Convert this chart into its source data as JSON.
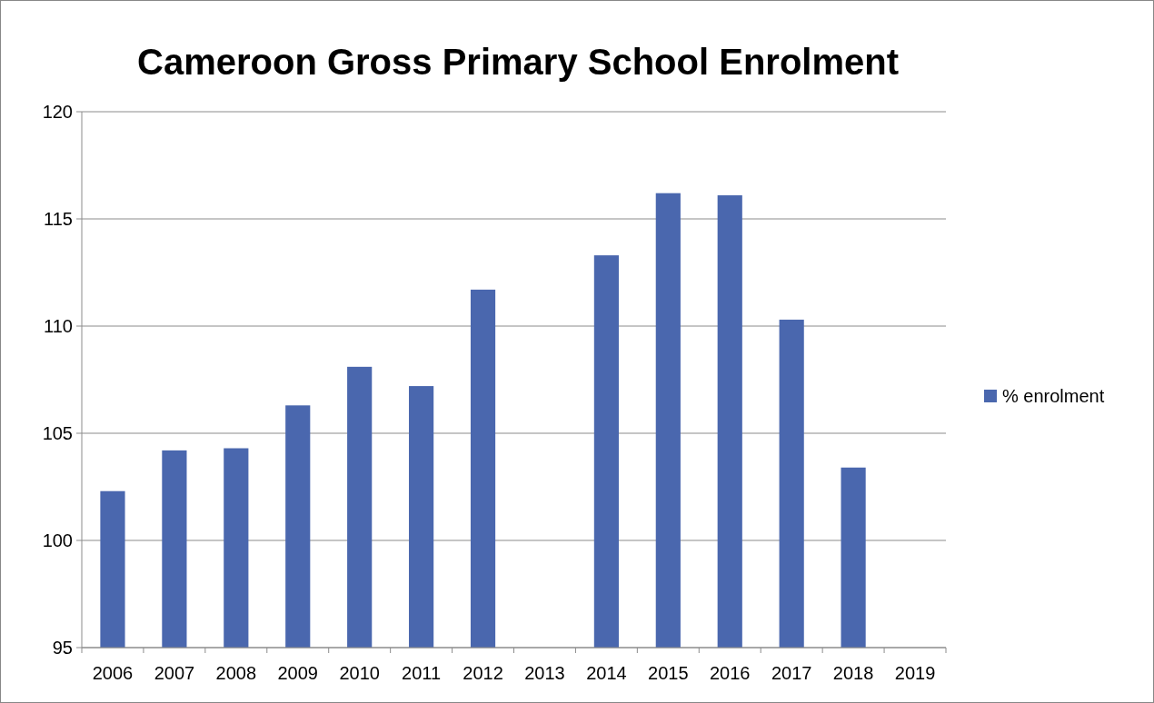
{
  "chart_data": {
    "type": "bar",
    "title": "Cameroon Gross  Primary School Enrolment",
    "categories": [
      "2006",
      "2007",
      "2008",
      "2009",
      "2010",
      "2011",
      "2012",
      "2013",
      "2014",
      "2015",
      "2016",
      "2017",
      "2018",
      "2019"
    ],
    "series": [
      {
        "name": "% enrolment",
        "color": "#4a67ae",
        "values": [
          102.3,
          104.2,
          104.3,
          106.3,
          108.1,
          107.2,
          111.7,
          null,
          113.3,
          116.2,
          116.1,
          110.3,
          103.4,
          null
        ]
      }
    ],
    "ylim": [
      95,
      120
    ],
    "yticks": [
      95,
      100,
      105,
      110,
      115,
      120
    ],
    "grid": "y",
    "legend": "right"
  }
}
